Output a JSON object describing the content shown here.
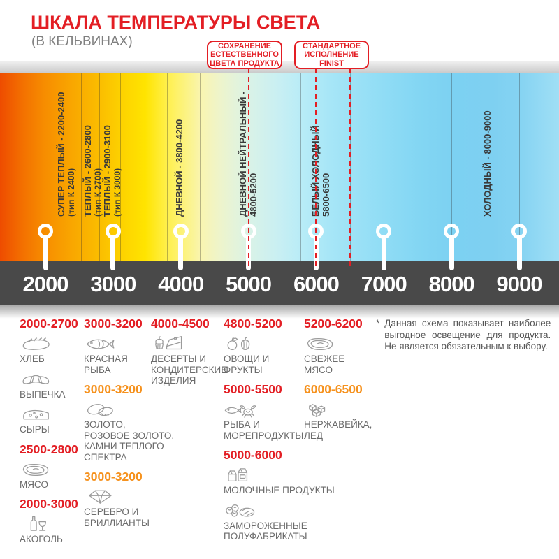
{
  "header": {
    "title": "ШКАЛА ТЕМПЕРАТУРЫ СВЕТА",
    "subtitle": "(В КЕЛЬВИНАХ)"
  },
  "callouts": [
    {
      "lines": [
        "СОХРАНЕНИЕ",
        "ЕСТЕСТВЕННОГО",
        "ЦВЕТА ПРОДУКТА"
      ],
      "pointer_k": [
        5000
      ]
    },
    {
      "lines": [
        "СТАНДАРТНОЕ",
        "ИСПОЛНЕНИЕ",
        "FINIST"
      ],
      "pointer_k": [
        6000,
        6500
      ]
    }
  ],
  "scale": {
    "unit": "Кельвины",
    "min_k": 2000,
    "max_k": 9000,
    "ticks": [
      {
        "label": "2000",
        "k": 2000
      },
      {
        "label": "3000",
        "k": 3000
      },
      {
        "label": "4000",
        "k": 4000
      },
      {
        "label": "5000",
        "k": 5000
      },
      {
        "label": "6000",
        "k": 6000
      },
      {
        "label": "7000",
        "k": 7000
      },
      {
        "label": "8000",
        "k": 8000
      },
      {
        "label": "9000",
        "k": 9000
      }
    ],
    "zones": [
      {
        "lines": [
          "СУПЕР ТЕПЛЫЙ - 2200-2400",
          "(тип К 2400)"
        ],
        "k": 2150
      },
      {
        "lines": [
          "ТЕПЛЫЙ - 2600-2800",
          "(тип К 2700)"
        ],
        "k": 2545
      },
      {
        "lines": [
          "ТЕПЛЫЙ - 2900-3100",
          "(тип К 3000)"
        ],
        "k": 2835
      },
      {
        "lines": [
          "ДНЕВНОЙ - 3800-4200"
        ],
        "k": 3900
      },
      {
        "lines": [
          "ДНЕВНОЙ НЕЙТРАЛЬНЫЙ -",
          "4800-5200"
        ],
        "k": 4835
      },
      {
        "lines": [
          "БЕЛЫЙ ХОЛОДНЫЙ -",
          "5800-6500"
        ],
        "k": 5910
      },
      {
        "lines": [
          "ХОЛОДНЫЙ - 8000-9000"
        ],
        "k": 8450
      }
    ],
    "divider_k": [
      2130,
      2230,
      2400,
      2530,
      2800,
      3100,
      3800,
      4280,
      4800,
      5770,
      6500,
      7000,
      8000,
      9000
    ],
    "gradient_stops": [
      {
        "pos": 0,
        "color": "#ee4c00"
      },
      {
        "pos": 4,
        "color": "#f37000"
      },
      {
        "pos": 8,
        "color": "#f78d00"
      },
      {
        "pos": 13,
        "color": "#f9a700"
      },
      {
        "pos": 18,
        "color": "#fbbe00"
      },
      {
        "pos": 22,
        "color": "#fdd300"
      },
      {
        "pos": 26,
        "color": "#ffe400"
      },
      {
        "pos": 30,
        "color": "#fff04e"
      },
      {
        "pos": 36,
        "color": "#f9f5b0"
      },
      {
        "pos": 39,
        "color": "#eff4c9"
      },
      {
        "pos": 42,
        "color": "#e4f3da"
      },
      {
        "pos": 45,
        "color": "#d8f2e8"
      },
      {
        "pos": 50,
        "color": "#c8eff3"
      },
      {
        "pos": 54,
        "color": "#b8ecf7"
      },
      {
        "pos": 59,
        "color": "#a7e6f7"
      },
      {
        "pos": 63,
        "color": "#9de2f6"
      },
      {
        "pos": 69,
        "color": "#8fdcf5"
      },
      {
        "pos": 75,
        "color": "#83d6f3"
      },
      {
        "pos": 81,
        "color": "#7cd1f2"
      },
      {
        "pos": 88,
        "color": "#7ed0f1"
      },
      {
        "pos": 93,
        "color": "#85d3f2"
      },
      {
        "pos": 100,
        "color": "#a0dff5"
      }
    ]
  },
  "legend": {
    "columns": [
      {
        "blocks": [
          {
            "range": "2000-2700",
            "color": "red",
            "items": [
              {
                "icon": "bread-icon",
                "label": "ХЛЕБ"
              },
              {
                "icon": "croissant-icon",
                "label": "ВЫПЕЧКА"
              },
              {
                "icon": "cheese-icon",
                "label": "СЫРЫ"
              }
            ]
          },
          {
            "range": "2500-2800",
            "color": "red",
            "items": [
              {
                "icon": "meat-icon",
                "label": "МЯСО"
              }
            ]
          },
          {
            "range": "2000-3000",
            "color": "red",
            "items": [
              {
                "icon": "alcohol-icon",
                "label": "АКОГОЛЬ"
              }
            ]
          }
        ]
      },
      {
        "blocks": [
          {
            "range": "3000-3200",
            "color": "red",
            "items": [
              {
                "icon": "fish-icon",
                "label": "КРАСНАЯ\nРЫБА"
              }
            ]
          },
          {
            "range": "3000-3200",
            "color": "orange",
            "items": [
              {
                "icon": "rings-icon",
                "label": "ЗОЛОТО,\nРОЗОВОЕ ЗОЛОТО,\nКАМНИ ТЕПЛОГО\nСПЕКТРА"
              }
            ]
          },
          {
            "range": "3000-3200",
            "color": "orange",
            "items": [
              {
                "icon": "diamond-icon",
                "label": "СЕРЕБРО И\nБРИЛЛИАНТЫ"
              }
            ]
          }
        ]
      },
      {
        "blocks": [
          {
            "range": "4000-4500",
            "color": "red",
            "items": [
              {
                "icon": "dessert-icon",
                "label": "ДЕСЕРТЫ И\nКОНДИТЕРСКИЕ\nИЗДЕЛИЯ"
              }
            ]
          }
        ]
      },
      {
        "blocks": [
          {
            "range": "4800-5200",
            "color": "red",
            "items": [
              {
                "icon": "fruits-icon",
                "label": "ОВОЩИ И\nФРУКТЫ"
              }
            ]
          },
          {
            "range": "5000-5500",
            "color": "red",
            "items": [
              {
                "icon": "seafood-icon",
                "label": "РЫБА И\nМОРЕПРОДУКТЫ"
              }
            ]
          },
          {
            "range": "5000-6000",
            "color": "red",
            "items": [
              {
                "icon": "milk-icon",
                "label": "МОЛОЧНЫЕ ПРОДУКТЫ"
              },
              {
                "icon": "frozen-icon",
                "label": "ЗАМОРОЖЕННЫЕ\nПОЛУФАБРИКАТЫ"
              }
            ]
          }
        ]
      },
      {
        "blocks": [
          {
            "range": "5200-6200",
            "color": "red",
            "items": [
              {
                "icon": "fresh-meat-icon",
                "label": "СВЕЖЕЕ\nМЯСО"
              }
            ]
          },
          {
            "range": "6000-6500",
            "color": "orange",
            "items": [
              {
                "icon": "ice-icon",
                "label": "НЕРЖАВЕЙКА,\nЛЕД"
              }
            ]
          }
        ]
      }
    ]
  },
  "footnote": {
    "marker": "*",
    "text": "Данная схема показывает наиболее выгодное освещение для продукта. Не является обязательным к выбору."
  },
  "colors": {
    "accent_red": "#e31e24",
    "accent_orange": "#f6921e",
    "scale_bar": "#494949",
    "label_gray": "#6b6b6b",
    "zone_label": "#3a3a3a"
  }
}
